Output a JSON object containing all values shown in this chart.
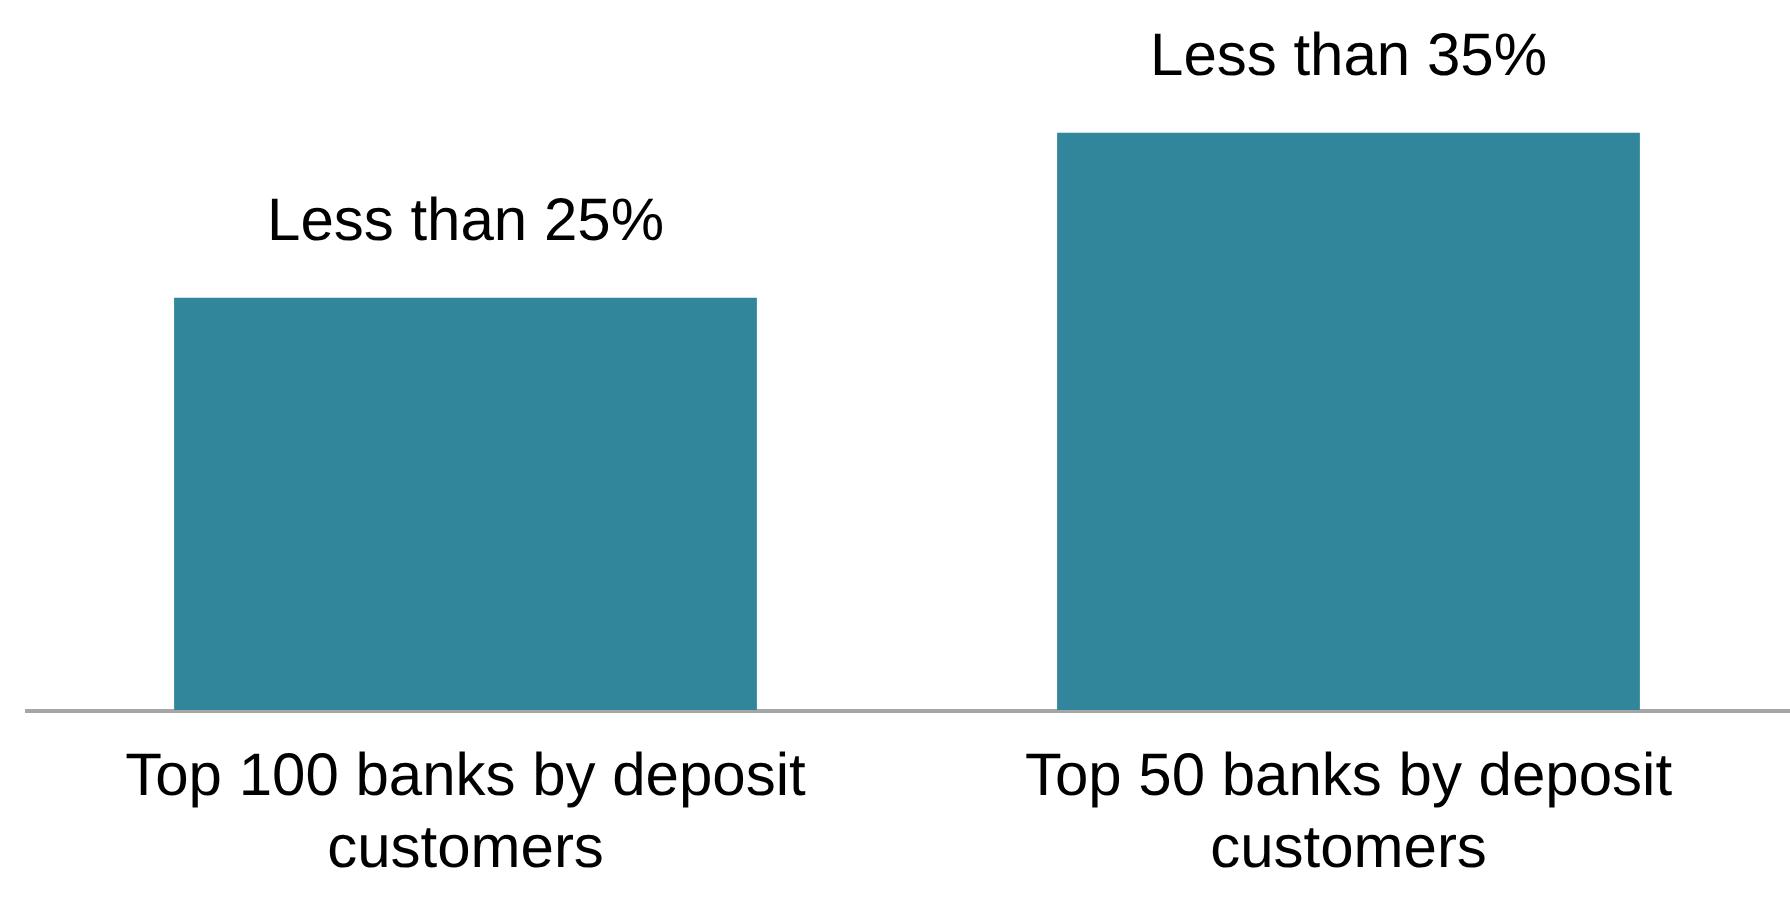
{
  "chart_data": {
    "type": "bar",
    "categories": [
      "Top 100 banks by deposit customers",
      "Top 50 banks by deposit customers"
    ],
    "values": [
      25,
      35
    ],
    "value_labels": [
      "Less than 25%",
      "Less than 35%"
    ],
    "color": "#31869b"
  }
}
